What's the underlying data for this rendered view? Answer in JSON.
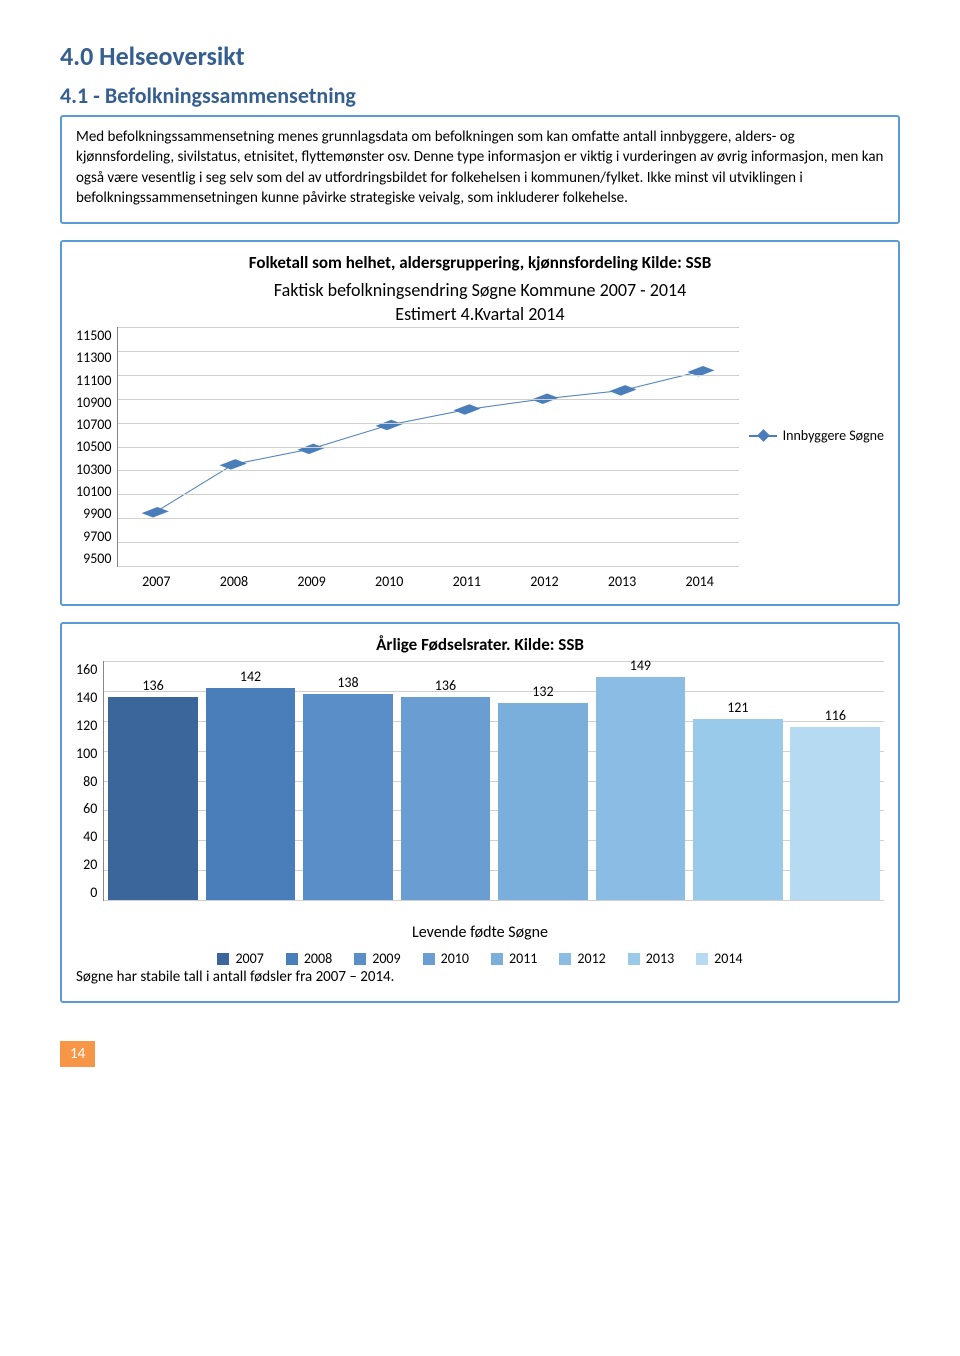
{
  "section_title": "4.0 Helseoversikt",
  "sub_title": "4.1 - Befolkningssammensetning",
  "intro_text": "Med befolkningssammensetning menes grunnlagsdata om befolkningen som kan omfatte antall innbyggere, alders- og kjønnsfordeling, sivilstatus, etnisitet, flyttemønster osv. Denne type informasjon er viktig i vurderingen av øvrig informasjon, men kan også være vesentlig i seg selv som del av utfordringsbildet for folkehelsen i kommunen/fylket. Ikke minst vil utviklingen i befolkningssammensetningen kunne påvirke strategiske veivalg, som inkluderer folkehelse.",
  "line_chart": {
    "title": "Folketall som helhet, aldersgruppering, kjønnsfordeling Kilde: SSB",
    "subtitle1": "Faktisk befolkningsendring Søgne  Kommune 2007 - 2014",
    "subtitle2": "Estimert 4.Kvartal 2014",
    "y_min": 9500,
    "y_max": 11500,
    "y_ticks": [
      "11500",
      "11300",
      "11100",
      "10900",
      "10700",
      "10500",
      "10300",
      "10100",
      "9900",
      "9700",
      "9500"
    ],
    "x_labels": [
      "2007",
      "2008",
      "2009",
      "2010",
      "2011",
      "2012",
      "2013",
      "2014"
    ],
    "values": [
      9950,
      10350,
      10480,
      10680,
      10810,
      10900,
      10970,
      11130
    ],
    "legend_label": "Innbyggere Søgne",
    "line_color": "#4a7ebb",
    "grid_color": "#d0d0d0"
  },
  "bar_chart": {
    "title": "Årlige Fødselsrater. Kilde: SSB",
    "y_min": 0,
    "y_max": 160,
    "y_ticks": [
      "160",
      "140",
      "120",
      "100",
      "80",
      "60",
      "40",
      "20",
      "0"
    ],
    "values": [
      136,
      142,
      138,
      136,
      132,
      149,
      121,
      116
    ],
    "labels": [
      "136",
      "142",
      "138",
      "136",
      "132",
      "149",
      "121",
      "116"
    ],
    "colors": [
      "#3a669c",
      "#4a7ebb",
      "#5a8ec8",
      "#6a9ed2",
      "#7aaedb",
      "#8abce4",
      "#9acaea",
      "#b5daf2"
    ],
    "legend_years": [
      "2007",
      "2008",
      "2009",
      "2010",
      "2011",
      "2012",
      "2013",
      "2014"
    ],
    "x_caption": "Levende fødte Søgne",
    "grid_color": "#d0d0d0"
  },
  "footnote": "Søgne har stabile tall i antall fødsler fra 2007 – 2014.",
  "page_number": "14"
}
